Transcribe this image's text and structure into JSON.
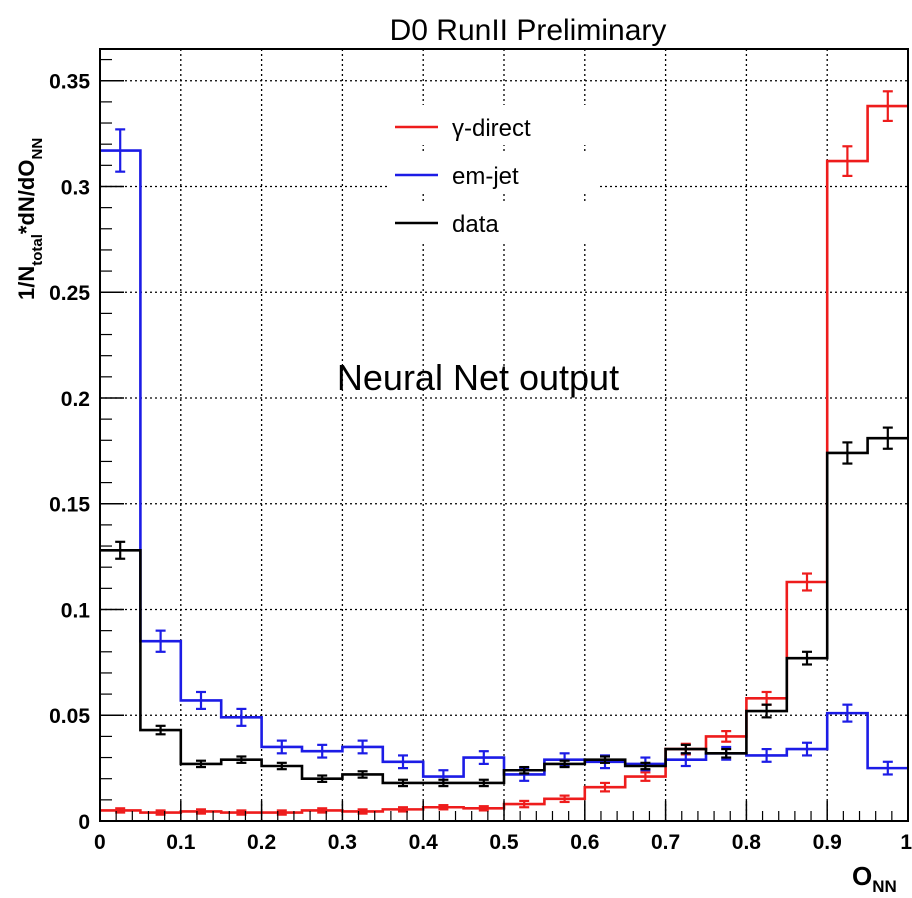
{
  "chart_data": {
    "type": "step",
    "title": "D0 RunII Preliminary",
    "annotation": "Neural Net output",
    "xlabel": {
      "main": "O",
      "sub": "NN"
    },
    "ylabel": {
      "p1": "1/N",
      "p1sub": "total",
      "p2": "*dN/dO",
      "p2sub": "NN"
    },
    "xlim": [
      0,
      1
    ],
    "ylim": [
      0,
      0.365
    ],
    "grid": true,
    "legend_position": "top-center",
    "x_ticks": [
      "0",
      "0.1",
      "0.2",
      "0.3",
      "0.4",
      "0.5",
      "0.6",
      "0.7",
      "0.8",
      "0.9",
      "1"
    ],
    "y_ticks": [
      "0",
      "0.05",
      "0.1",
      "0.15",
      "0.2",
      "0.25",
      "0.3",
      "0.35"
    ],
    "bin_edges": [
      0,
      0.05,
      0.1,
      0.15,
      0.2,
      0.25,
      0.3,
      0.35,
      0.4,
      0.45,
      0.5,
      0.55,
      0.6,
      0.65,
      0.7,
      0.75,
      0.8,
      0.85,
      0.9,
      0.95,
      1.0
    ],
    "series": [
      {
        "name": "γ-direct",
        "color": "#ee1c1c",
        "values": [
          0.005,
          0.004,
          0.0045,
          0.004,
          0.004,
          0.005,
          0.0045,
          0.0055,
          0.0065,
          0.006,
          0.008,
          0.0105,
          0.016,
          0.021,
          0.034,
          0.04,
          0.058,
          0.113,
          0.312,
          0.338
        ],
        "errors": [
          0.001,
          0.001,
          0.001,
          0.001,
          0.001,
          0.001,
          0.001,
          0.001,
          0.001,
          0.001,
          0.0015,
          0.0015,
          0.002,
          0.002,
          0.0025,
          0.0025,
          0.003,
          0.004,
          0.007,
          0.007
        ]
      },
      {
        "name": "em-jet",
        "color": "#1c1ce6",
        "values": [
          0.317,
          0.085,
          0.057,
          0.049,
          0.035,
          0.033,
          0.035,
          0.028,
          0.021,
          0.03,
          0.022,
          0.029,
          0.028,
          0.027,
          0.029,
          0.032,
          0.031,
          0.034,
          0.051,
          0.025
        ],
        "errors": [
          0.01,
          0.005,
          0.004,
          0.004,
          0.003,
          0.003,
          0.003,
          0.003,
          0.003,
          0.003,
          0.003,
          0.003,
          0.003,
          0.003,
          0.003,
          0.003,
          0.003,
          0.003,
          0.004,
          0.003
        ]
      },
      {
        "name": "data",
        "color": "#000000",
        "values": [
          0.128,
          0.043,
          0.027,
          0.029,
          0.026,
          0.02,
          0.022,
          0.018,
          0.018,
          0.018,
          0.024,
          0.027,
          0.029,
          0.026,
          0.034,
          0.032,
          0.052,
          0.077,
          0.174,
          0.181
        ],
        "errors": [
          0.004,
          0.002,
          0.0015,
          0.0015,
          0.0015,
          0.0015,
          0.0015,
          0.0015,
          0.0015,
          0.0015,
          0.0015,
          0.0015,
          0.0015,
          0.0015,
          0.002,
          0.002,
          0.003,
          0.003,
          0.005,
          0.005
        ]
      }
    ]
  }
}
